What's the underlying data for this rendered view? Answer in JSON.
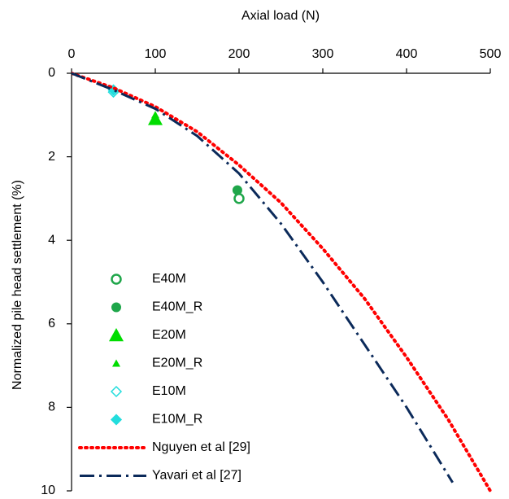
{
  "chart_data": {
    "type": "scatter",
    "x_label": "Axial load  (N)",
    "y_label": "Normalized pile head  settlement (%)",
    "xlim": [
      0,
      500
    ],
    "ylim": [
      0,
      10
    ],
    "xticks": [
      0,
      100,
      200,
      300,
      400,
      500
    ],
    "yticks": [
      0,
      2,
      4,
      6,
      8,
      10
    ],
    "y_inverted": true,
    "x_axis_position": "top",
    "series": [
      {
        "name": "E40M",
        "color": "#1fa64a",
        "marker": "open-circle",
        "x": [
          200
        ],
        "values": [
          3.0
        ]
      },
      {
        "name": "E40M_R",
        "color": "#1fa64a",
        "marker": "circle",
        "x": [
          198
        ],
        "values": [
          2.8
        ]
      },
      {
        "name": "E20M",
        "color": "#00dd00",
        "marker": "triangle",
        "x": [
          100
        ],
        "values": [
          1.1
        ]
      },
      {
        "name": "E20M_R",
        "color": "#00dd00",
        "marker": "small-triangle",
        "x": [
          100
        ],
        "values": [
          1.0
        ]
      },
      {
        "name": "E10M",
        "color": "#22dddd",
        "marker": "open-diamond",
        "x": [
          50
        ],
        "values": [
          0.45
        ]
      },
      {
        "name": "E10M_R",
        "color": "#22dddd",
        "marker": "diamond",
        "x": [
          50
        ],
        "values": [
          0.4
        ]
      },
      {
        "name": "Nguyen et al [29]",
        "color": "#ff0000",
        "line": "dotted",
        "x": [
          0,
          50,
          100,
          150,
          200,
          250,
          300,
          350,
          400,
          450,
          500
        ],
        "values": [
          0,
          0.35,
          0.8,
          1.4,
          2.2,
          3.1,
          4.2,
          5.4,
          6.8,
          8.3,
          10
        ]
      },
      {
        "name": "Yavari et al [27]",
        "color": "#0b2a5a",
        "line": "dash-dot",
        "x": [
          0,
          50,
          100,
          150,
          200,
          250,
          300,
          350,
          400,
          455
        ],
        "values": [
          0,
          0.4,
          0.85,
          1.5,
          2.4,
          3.6,
          5.0,
          6.5,
          8.0,
          9.8
        ]
      }
    ]
  }
}
